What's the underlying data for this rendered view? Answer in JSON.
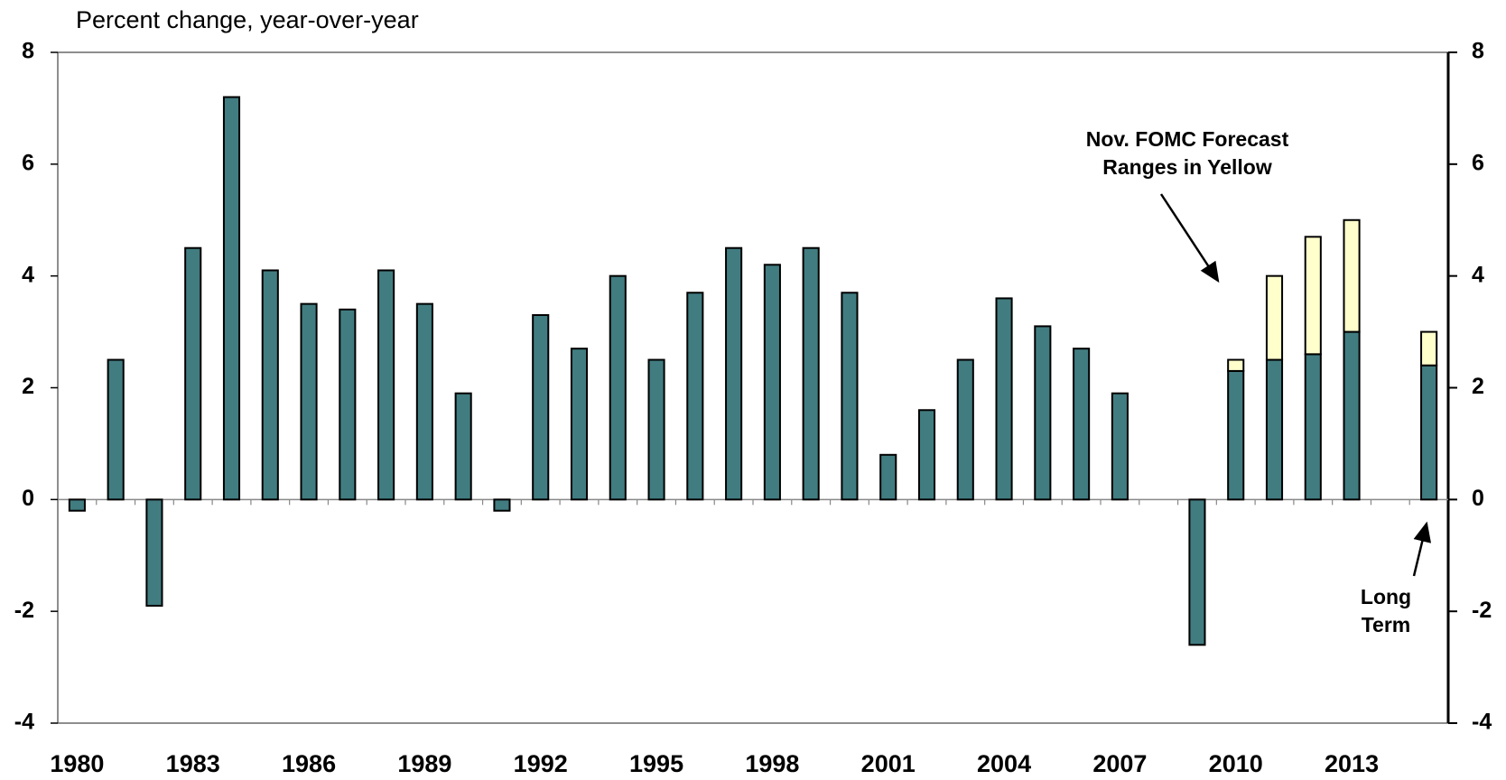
{
  "chart_data": {
    "type": "stacked-bar",
    "title": "Percent change, year-over-year",
    "categories": [
      "1980",
      null,
      null,
      "1983",
      null,
      null,
      "1986",
      null,
      null,
      "1989",
      null,
      null,
      "1992",
      null,
      null,
      "1995",
      null,
      null,
      "1998",
      null,
      null,
      "2001",
      null,
      null,
      "2004",
      null,
      null,
      "2007",
      null,
      null,
      "2010",
      null,
      null,
      "2013",
      null,
      null
    ],
    "series": [
      {
        "color": "#417c80",
        "values": [
          -0.2,
          2.5,
          -1.9,
          4.5,
          7.2,
          4.1,
          3.5,
          3.4,
          4.1,
          3.5,
          1.9,
          -0.2,
          3.3,
          2.7,
          4.0,
          2.5,
          3.7,
          4.5,
          4.2,
          4.5,
          3.7,
          0.8,
          1.6,
          2.5,
          3.6,
          3.1,
          2.7,
          1.9,
          null,
          -2.6,
          2.3,
          2.5,
          2.6,
          3.0,
          null,
          2.4
        ]
      },
      {
        "color": "#ffffcc",
        "values": [
          null,
          null,
          null,
          null,
          null,
          null,
          null,
          null,
          null,
          null,
          null,
          null,
          null,
          null,
          null,
          null,
          null,
          null,
          null,
          null,
          null,
          null,
          null,
          null,
          null,
          null,
          null,
          null,
          null,
          null,
          0.2,
          1.5,
          2.1,
          2.0,
          null,
          0.6
        ]
      }
    ],
    "ylim": [
      -4,
      8
    ],
    "yticks": [
      -4,
      -2,
      0,
      2,
      4,
      6,
      8
    ],
    "y2lim": [
      -4,
      8
    ],
    "y2ticks": [
      -4,
      -2,
      0,
      2,
      4,
      6,
      8
    ],
    "annotations": [
      {
        "lines": [
          "Nov. FOMC Forecast",
          "Ranges in Yellow"
        ]
      },
      {
        "lines": [
          "Long",
          "Term"
        ]
      }
    ]
  }
}
